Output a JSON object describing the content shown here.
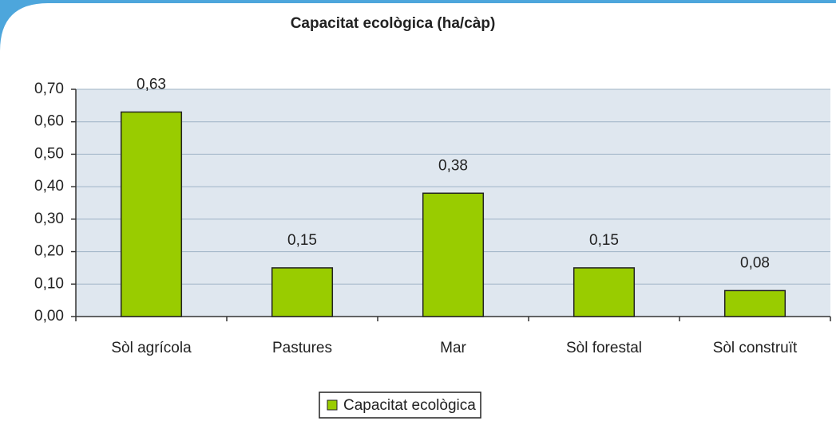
{
  "chart_data": {
    "type": "bar",
    "title": "Capacitat ecològica (ha/càp)",
    "categories": [
      "Sòl agrícola",
      "Pastures",
      "Mar",
      "Sòl forestal",
      "Sòl construït"
    ],
    "series": [
      {
        "name": "Capacitat ecològica",
        "color": "#99cc00",
        "values": [
          0.63,
          0.15,
          0.38,
          0.15,
          0.08
        ],
        "value_labels": [
          "0,63",
          "0,15",
          "0,38",
          "0,15",
          "0,08"
        ]
      }
    ],
    "ylim": [
      0,
      0.7
    ],
    "yticks": [
      {
        "value": 0,
        "label": "0,00"
      },
      {
        "value": 0.1,
        "label": "0,10"
      },
      {
        "value": 0.2,
        "label": "0,20"
      },
      {
        "value": 0.3,
        "label": "0,30"
      },
      {
        "value": 0.4,
        "label": "0,40"
      },
      {
        "value": 0.5,
        "label": "0,50"
      },
      {
        "value": 0.6,
        "label": "0,60"
      },
      {
        "value": 0.7,
        "label": "0,70"
      }
    ],
    "grid": true
  }
}
